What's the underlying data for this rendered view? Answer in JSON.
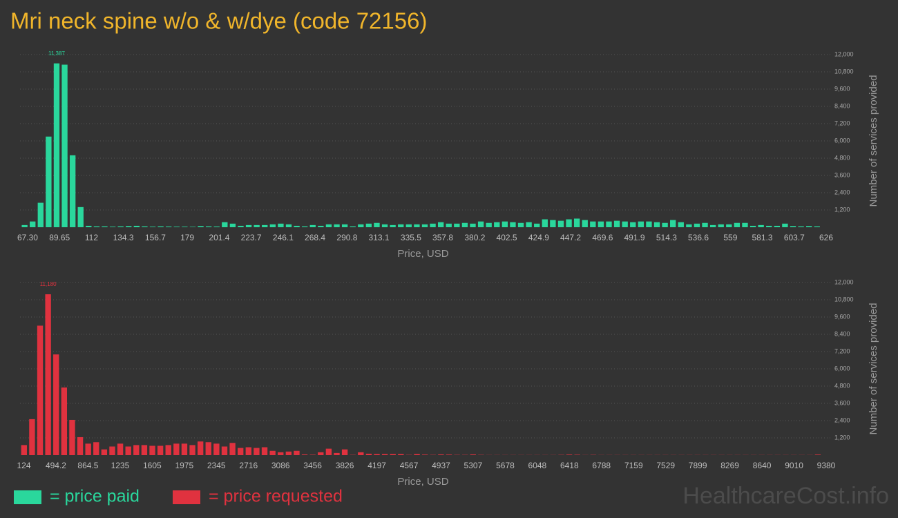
{
  "title": "Mri neck spine w/o & w/dye (code 72156)",
  "watermark": "HealthcareCost.info",
  "chart_data": [
    {
      "type": "histogram",
      "x_label": "Price, USD",
      "y_label": "Number of services provided",
      "xlim": [
        62,
        626
      ],
      "ylim": [
        0,
        12000
      ],
      "grid": true,
      "xticks": [
        {
          "value": 67.3,
          "label": "67.30"
        },
        89.65,
        112,
        134.3,
        156.7,
        179,
        201.4,
        223.7,
        246.1,
        268.4,
        290.8,
        313.1,
        335.5,
        357.8,
        380.2,
        402.5,
        424.9,
        447.2,
        469.6,
        491.9,
        514.3,
        536.6,
        559,
        581.3,
        603.7,
        626
      ],
      "yticks": [
        {
          "value": 1200,
          "label": "1,200"
        },
        {
          "value": 2400,
          "label": "2,400"
        },
        {
          "value": 3600,
          "label": "3,600"
        },
        {
          "value": 4800,
          "label": "4,800"
        },
        {
          "value": 6000,
          "label": "6,000"
        },
        {
          "value": 7200,
          "label": "7,200"
        },
        {
          "value": 8400,
          "label": "8,400"
        },
        {
          "value": 9600,
          "label": "9,600"
        },
        {
          "value": 10800,
          "label": "10,800"
        },
        {
          "value": 12000,
          "label": "12,000"
        }
      ],
      "bins": [
        62.4,
        68,
        73.6,
        79.2,
        84.8,
        90.4,
        96,
        101.6,
        107.2,
        112.8,
        118.4,
        124,
        129.6,
        135.2,
        140.8,
        146.4,
        152,
        157.6,
        163.2,
        168.8,
        174.4,
        180,
        185.6,
        191.2,
        196.8,
        202.4,
        208,
        213.6,
        219.2,
        224.8,
        230.4,
        236,
        241.6,
        247.2,
        252.8,
        258.4,
        264,
        269.6,
        275.2,
        280.8,
        286.4,
        292,
        297.6,
        303.2,
        308.8,
        314.4,
        320,
        325.6,
        331.2,
        336.8,
        342.4,
        348,
        353.6,
        359.2,
        364.8,
        370.4,
        376,
        381.6,
        387.2,
        392.8,
        398.4,
        404,
        409.6,
        415.2,
        420.8,
        426.4,
        432,
        437.6,
        443.2,
        448.8,
        454.4,
        460,
        465.6,
        471.2,
        476.8,
        482.4,
        488,
        493.6,
        499.2,
        504.8,
        510.4,
        516,
        521.6,
        527.2,
        532.8,
        538.4,
        544,
        549.6,
        555.2,
        560.8,
        566.4,
        572,
        577.6,
        583.2,
        588.8,
        594.4,
        600,
        605.6,
        611.2,
        616.8,
        622.4
      ],
      "series": [
        {
          "name": "= price paid",
          "color": "#2ad79c",
          "values": [
            150,
            400,
            1700,
            6300,
            11387,
            11300,
            5000,
            1400,
            100,
            60,
            60,
            40,
            60,
            80,
            100,
            60,
            40,
            60,
            50,
            40,
            40,
            30,
            80,
            60,
            50,
            350,
            250,
            100,
            150,
            150,
            150,
            200,
            250,
            200,
            100,
            60,
            150,
            100,
            200,
            200,
            200,
            60,
            200,
            250,
            300,
            200,
            150,
            200,
            200,
            200,
            200,
            250,
            350,
            250,
            250,
            300,
            250,
            400,
            300,
            350,
            400,
            350,
            300,
            350,
            250,
            550,
            500,
            450,
            550,
            600,
            500,
            400,
            400,
            400,
            450,
            400,
            350,
            400,
            400,
            350,
            300,
            500,
            350,
            200,
            250,
            300,
            150,
            200,
            200,
            300,
            300,
            100,
            150,
            100,
            100,
            250,
            80,
            60,
            80,
            60
          ],
          "value_labels": [
            null,
            null,
            null,
            null,
            "11,387",
            null,
            null,
            null,
            null,
            null,
            null,
            null,
            null,
            null,
            null,
            null,
            null,
            null,
            null,
            null,
            null,
            null,
            null,
            null,
            null,
            null,
            null,
            null,
            null,
            null,
            null,
            null,
            null,
            null,
            null,
            null,
            null,
            null,
            null,
            null,
            null,
            null,
            null,
            null,
            null,
            null,
            null,
            null,
            null,
            null,
            null,
            null,
            null,
            null,
            null,
            null,
            null,
            null,
            null,
            null,
            null,
            null,
            null,
            null,
            null,
            null,
            null,
            null,
            null,
            null,
            null,
            null,
            null,
            null,
            null,
            null,
            null,
            null,
            null,
            null,
            null,
            null,
            null,
            null,
            null,
            null,
            null,
            null,
            null,
            null,
            null,
            null,
            null,
            null,
            null,
            null,
            null,
            null,
            null,
            null
          ]
        }
      ]
    },
    {
      "type": "histogram",
      "x_label": "Price, USD",
      "y_label": "Number of services provided",
      "xlim": [
        80,
        9380
      ],
      "ylim": [
        0,
        12000
      ],
      "grid": true,
      "xticks": [
        124,
        494.2,
        864.5,
        1235,
        1605,
        1975,
        2345,
        2716,
        3086,
        3456,
        3826,
        4197,
        4567,
        4937,
        5307,
        5678,
        6048,
        6418,
        6788,
        7159,
        7529,
        7899,
        8269,
        8640,
        9010,
        9380
      ],
      "yticks": [
        {
          "value": 1200,
          "label": "1,200"
        },
        {
          "value": 2400,
          "label": "2,400"
        },
        {
          "value": 3600,
          "label": "3,600"
        },
        {
          "value": 4800,
          "label": "4,800"
        },
        {
          "value": 6000,
          "label": "6,000"
        },
        {
          "value": 7200,
          "label": "7,200"
        },
        {
          "value": 8400,
          "label": "8,400"
        },
        {
          "value": 9600,
          "label": "9,600"
        },
        {
          "value": 10800,
          "label": "10,800"
        },
        {
          "value": 12000,
          "label": "12,000"
        }
      ],
      "bins": [
        80,
        172.5,
        265,
        357.5,
        450,
        542.5,
        635,
        727.5,
        820,
        912.5,
        1005,
        1097.5,
        1190,
        1282.5,
        1375,
        1467.5,
        1560,
        1652.5,
        1745,
        1837.5,
        1930,
        2022.5,
        2115,
        2207.5,
        2300,
        2392.5,
        2485,
        2577.5,
        2670,
        2762.5,
        2855,
        2947.5,
        3040,
        3132.5,
        3225,
        3317.5,
        3410,
        3502.5,
        3595,
        3687.5,
        3780,
        3872.5,
        3965,
        4057.5,
        4150,
        4242.5,
        4335,
        4427.5,
        4520,
        4612.5,
        4705,
        4797.5,
        4890,
        4982.5,
        5075,
        5167.5,
        5260,
        5352.5,
        5445,
        5537.5,
        5630,
        5722.5,
        5815,
        5907.5,
        6000,
        6092.5,
        6185,
        6277.5,
        6370,
        6462.5,
        6555,
        6647.5,
        6740,
        6832.5,
        6925,
        7017.5,
        7110,
        7202.5,
        7295,
        7387.5,
        7480,
        7572.5,
        7665,
        7757.5,
        7850,
        7942.5,
        8035,
        8127.5,
        8220,
        8312.5,
        8405,
        8497.5,
        8590,
        8682.5,
        8775,
        8867.5,
        8960,
        9052.5,
        9145,
        9237.5,
        9330
      ],
      "series": [
        {
          "name": "= price requested",
          "color": "#e0323f",
          "values": [
            700,
            2500,
            9000,
            11180,
            7000,
            4700,
            2450,
            1250,
            800,
            900,
            400,
            600,
            800,
            600,
            700,
            700,
            650,
            650,
            700,
            800,
            800,
            700,
            950,
            900,
            800,
            600,
            850,
            500,
            550,
            500,
            550,
            300,
            200,
            250,
            300,
            50,
            30,
            200,
            450,
            150,
            400,
            20,
            200,
            100,
            80,
            80,
            80,
            80,
            20,
            80,
            40,
            20,
            50,
            40,
            20,
            20,
            50,
            20,
            10,
            10,
            10,
            10,
            10,
            10,
            10,
            10,
            10,
            20,
            40,
            30,
            10,
            20,
            10,
            10,
            10,
            10,
            10,
            10,
            10,
            10,
            10,
            10,
            10,
            10,
            10,
            10,
            10,
            10,
            10,
            10,
            10,
            10,
            10,
            10,
            10,
            10,
            10,
            10,
            10,
            40
          ],
          "value_labels": [
            null,
            null,
            null,
            "11,180",
            null,
            null,
            null,
            null,
            null,
            null,
            null,
            null,
            null,
            null,
            null,
            null,
            null,
            null,
            null,
            null,
            null,
            null,
            null,
            null,
            null,
            null,
            null,
            null,
            null,
            null,
            null,
            null,
            null,
            null,
            null,
            null,
            null,
            null,
            null,
            null,
            null,
            null,
            null,
            null,
            null,
            null,
            null,
            null,
            null,
            null,
            null,
            null,
            null,
            null,
            null,
            null,
            null,
            null,
            null,
            null,
            null,
            null,
            null,
            null,
            null,
            null,
            null,
            null,
            null,
            null,
            null,
            null,
            null,
            null,
            null,
            null,
            null,
            null,
            null,
            null,
            null,
            null,
            null,
            null,
            null,
            null,
            null,
            null,
            null,
            null,
            null,
            null,
            null,
            null,
            null,
            null,
            null,
            null,
            null,
            null
          ]
        }
      ]
    }
  ]
}
